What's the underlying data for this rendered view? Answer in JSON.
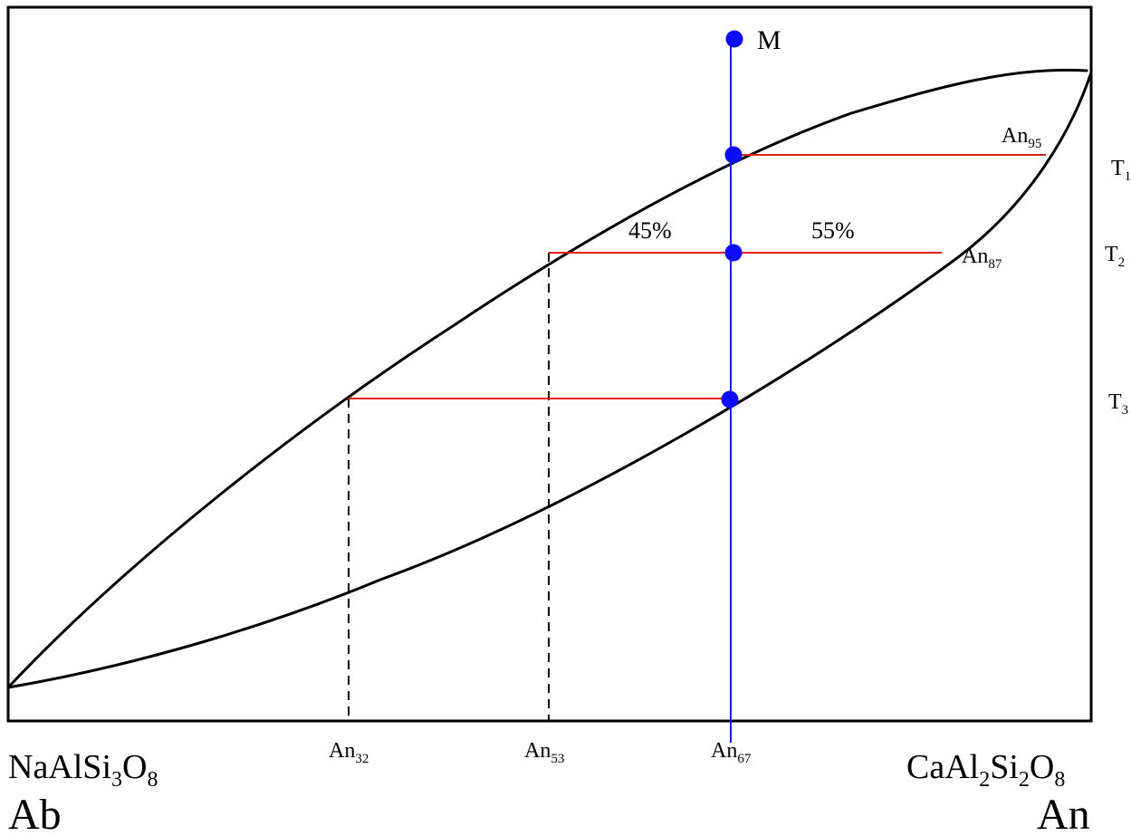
{
  "diagram": {
    "colors": {
      "frame": "#000000",
      "curves": "#000000",
      "tie_line": "#e8201c",
      "bulk_line": "#1a1aff",
      "point": "#0a0aff",
      "dashed": "#000000"
    },
    "point_label": "M",
    "lever": {
      "left": "45%",
      "right": "55%"
    },
    "temperatures": [
      {
        "base": "T",
        "sub": "1"
      },
      {
        "base": "T",
        "sub": "2"
      },
      {
        "base": "T",
        "sub": "3"
      }
    ],
    "tie_line_labels": [
      {
        "base": "An",
        "sub": "95"
      },
      {
        "base": "An",
        "sub": "87"
      }
    ],
    "axis_compositions": [
      {
        "base": "An",
        "sub": "32"
      },
      {
        "base": "An",
        "sub": "53"
      },
      {
        "base": "An",
        "sub": "67"
      }
    ],
    "endmember_left": {
      "formula": [
        {
          "t": "NaAlSi",
          "s": false
        },
        {
          "t": "3",
          "s": true
        },
        {
          "t": "O",
          "s": false
        },
        {
          "t": "8",
          "s": true
        }
      ],
      "abbr": "Ab"
    },
    "endmember_right": {
      "formula": [
        {
          "t": "CaAl",
          "s": false
        },
        {
          "t": "2",
          "s": true
        },
        {
          "t": "Si",
          "s": false
        },
        {
          "t": "2",
          "s": true
        },
        {
          "t": "O",
          "s": false
        },
        {
          "t": "8",
          "s": true
        }
      ],
      "abbr": "An"
    }
  }
}
